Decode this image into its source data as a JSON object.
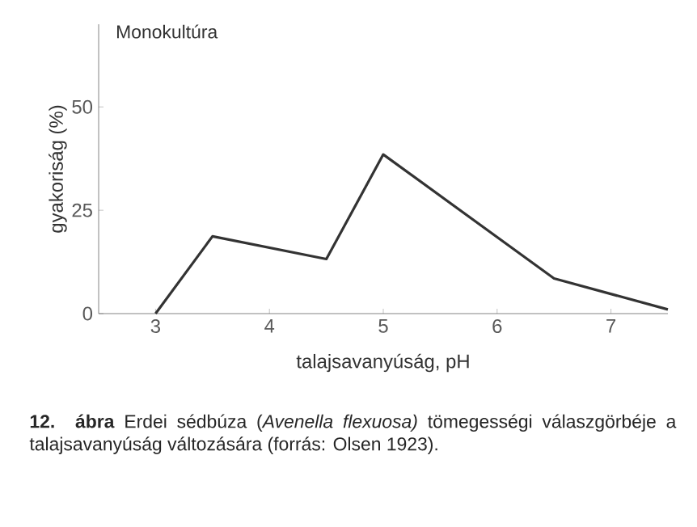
{
  "chart_data": {
    "type": "line",
    "title": "Monokultúra",
    "xlabel": "talajsavanyúság, pH",
    "ylabel": "gyakoriság (%)",
    "annotations": [
      "**12. ábra** Erdei sédbúza (*Avenella flexuosa)* tömegességi válaszgörbéje a talajsavanyúság változására (forrás: Olsen 1923)."
    ],
    "x": [
      3,
      3.5,
      4.5,
      5,
      6.5,
      7.5
    ],
    "values": [
      0,
      18.7,
      13.2,
      38.5,
      8.5,
      1
    ],
    "color": "#333333",
    "xlim": [
      2.5,
      7.5
    ],
    "ylim": [
      0,
      70
    ],
    "xticks": [
      3,
      4,
      5,
      6,
      7
    ],
    "yticks": [
      0,
      25,
      50
    ],
    "grid": false,
    "marker": "none",
    "line_style": "solid"
  }
}
